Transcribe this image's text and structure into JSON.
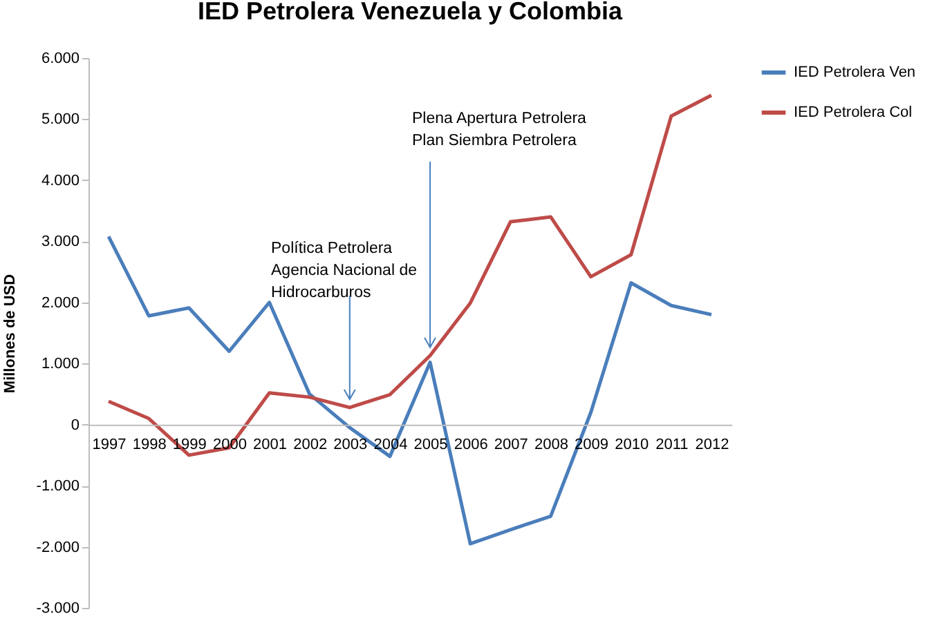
{
  "chart_data": {
    "type": "line",
    "title": "IED Petrolera Venezuela y Colombia",
    "ylabel": "Millones de USD",
    "categories": [
      "1997",
      "1998",
      "1999",
      "2000",
      "2001",
      "2002",
      "2003",
      "2004",
      "2005",
      "2006",
      "2007",
      "2008",
      "2009",
      "2010",
      "2011",
      "2012"
    ],
    "series": [
      {
        "name": "IED Petrolera Ven",
        "color": "#4a7ebb",
        "values": [
          3080,
          1780,
          1910,
          1200,
          2000,
          500,
          -50,
          -520,
          1020,
          -1950,
          -1720,
          -1500,
          200,
          2320,
          1950,
          1800
        ]
      },
      {
        "name": "IED Petrolera Col",
        "color": "#be4b48",
        "values": [
          380,
          100,
          -500,
          -380,
          520,
          450,
          280,
          490,
          1130,
          1990,
          3320,
          3400,
          2420,
          2780,
          5050,
          5390
        ]
      }
    ],
    "ylim": [
      -3000,
      6000
    ],
    "yticks": [
      {
        "value": -3000,
        "label": "-3.000"
      },
      {
        "value": -2000,
        "label": "-2.000"
      },
      {
        "value": -1000,
        "label": "-1.000"
      },
      {
        "value": 0,
        "label": "0"
      },
      {
        "value": 1000,
        "label": "1.000"
      },
      {
        "value": 2000,
        "label": "2.000"
      },
      {
        "value": 3000,
        "label": "3.000"
      },
      {
        "value": 4000,
        "label": "4.000"
      },
      {
        "value": 5000,
        "label": "5.000"
      },
      {
        "value": 6000,
        "label": "6.000"
      }
    ],
    "annotations": [
      {
        "text": "Política Petrolera\nAgencia Nacional de\nHidrocarburos",
        "x": "2003",
        "y": 280
      },
      {
        "text": "Plena Apertura Petrolera\nPlan Siembra Petrolera",
        "x": "2005",
        "y": 1130
      }
    ],
    "grid": false,
    "legend": "right",
    "marker": "none",
    "line_style": "solid"
  }
}
